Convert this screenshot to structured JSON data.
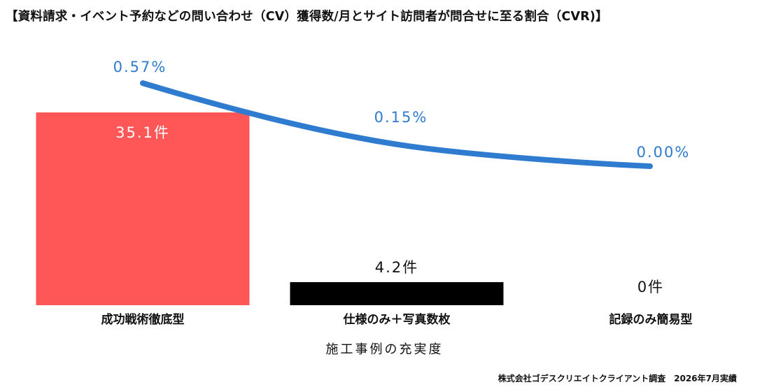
{
  "chart_data": {
    "type": "bar",
    "title": "【資料請求・イベント予約などの問い合わせ（CV）獲得数/月とサイト訪問者が問合せに至る割合（CVR)】",
    "xlabel": "施工事例の充実度",
    "categories": [
      "成功戦術徹底型",
      "仕様のみ＋写真数枚",
      "記録のみ簡易型"
    ],
    "series": [
      {
        "type": "bar",
        "values": [
          35.1,
          4.2,
          0
        ],
        "value_labels": [
          "35.1件",
          "4.2件",
          "0件"
        ],
        "colors": [
          "#ff5757",
          "#000000",
          "#000000"
        ]
      },
      {
        "type": "line",
        "values": [
          0.57,
          0.15,
          0.0
        ],
        "value_labels": [
          "0.57%",
          "0.15%",
          "0.00%"
        ],
        "color": "#2f7bd0"
      }
    ],
    "source": "株式会社ゴデスクリエイトクライアント調査　2026年7月実績"
  }
}
